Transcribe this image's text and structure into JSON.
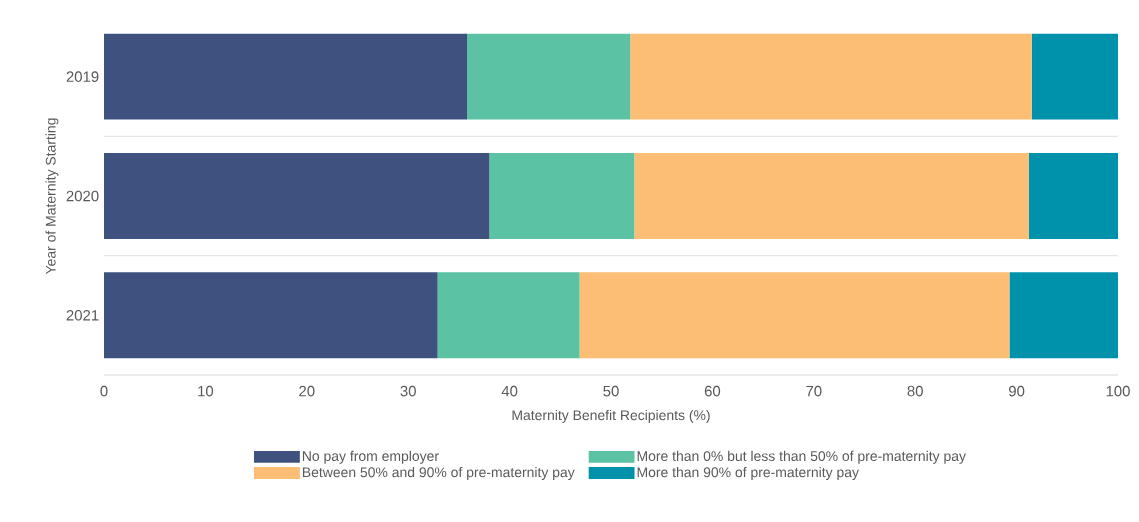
{
  "chart_data": {
    "type": "bar",
    "orientation": "horizontal",
    "stacked": true,
    "categories": [
      "2019",
      "2020",
      "2021"
    ],
    "series": [
      {
        "name": "No pay from employer",
        "color": "#3f527f",
        "values": [
          35.8,
          38.0,
          32.9
        ]
      },
      {
        "name": "More than 0% but less than 50% of pre-maternity pay",
        "color": "#5bc2a4",
        "values": [
          16.1,
          14.3,
          14.0
        ]
      },
      {
        "name": "Between 50% and 90% of pre-maternity pay",
        "color": "#fbbe74",
        "values": [
          39.6,
          38.9,
          42.4
        ]
      },
      {
        "name": "More than 90% of pre-maternity pay",
        "color": "#0091ab",
        "values": [
          8.5,
          8.8,
          10.7
        ]
      }
    ],
    "xlim": [
      0,
      100
    ],
    "xticks": [
      0,
      10,
      20,
      30,
      40,
      50,
      60,
      70,
      80,
      90,
      100
    ],
    "xlabel": "Maternity Benefit Recipients (%)",
    "ylabel": "Year of Maternity Starting",
    "grid": "y",
    "legend": "bottom"
  }
}
